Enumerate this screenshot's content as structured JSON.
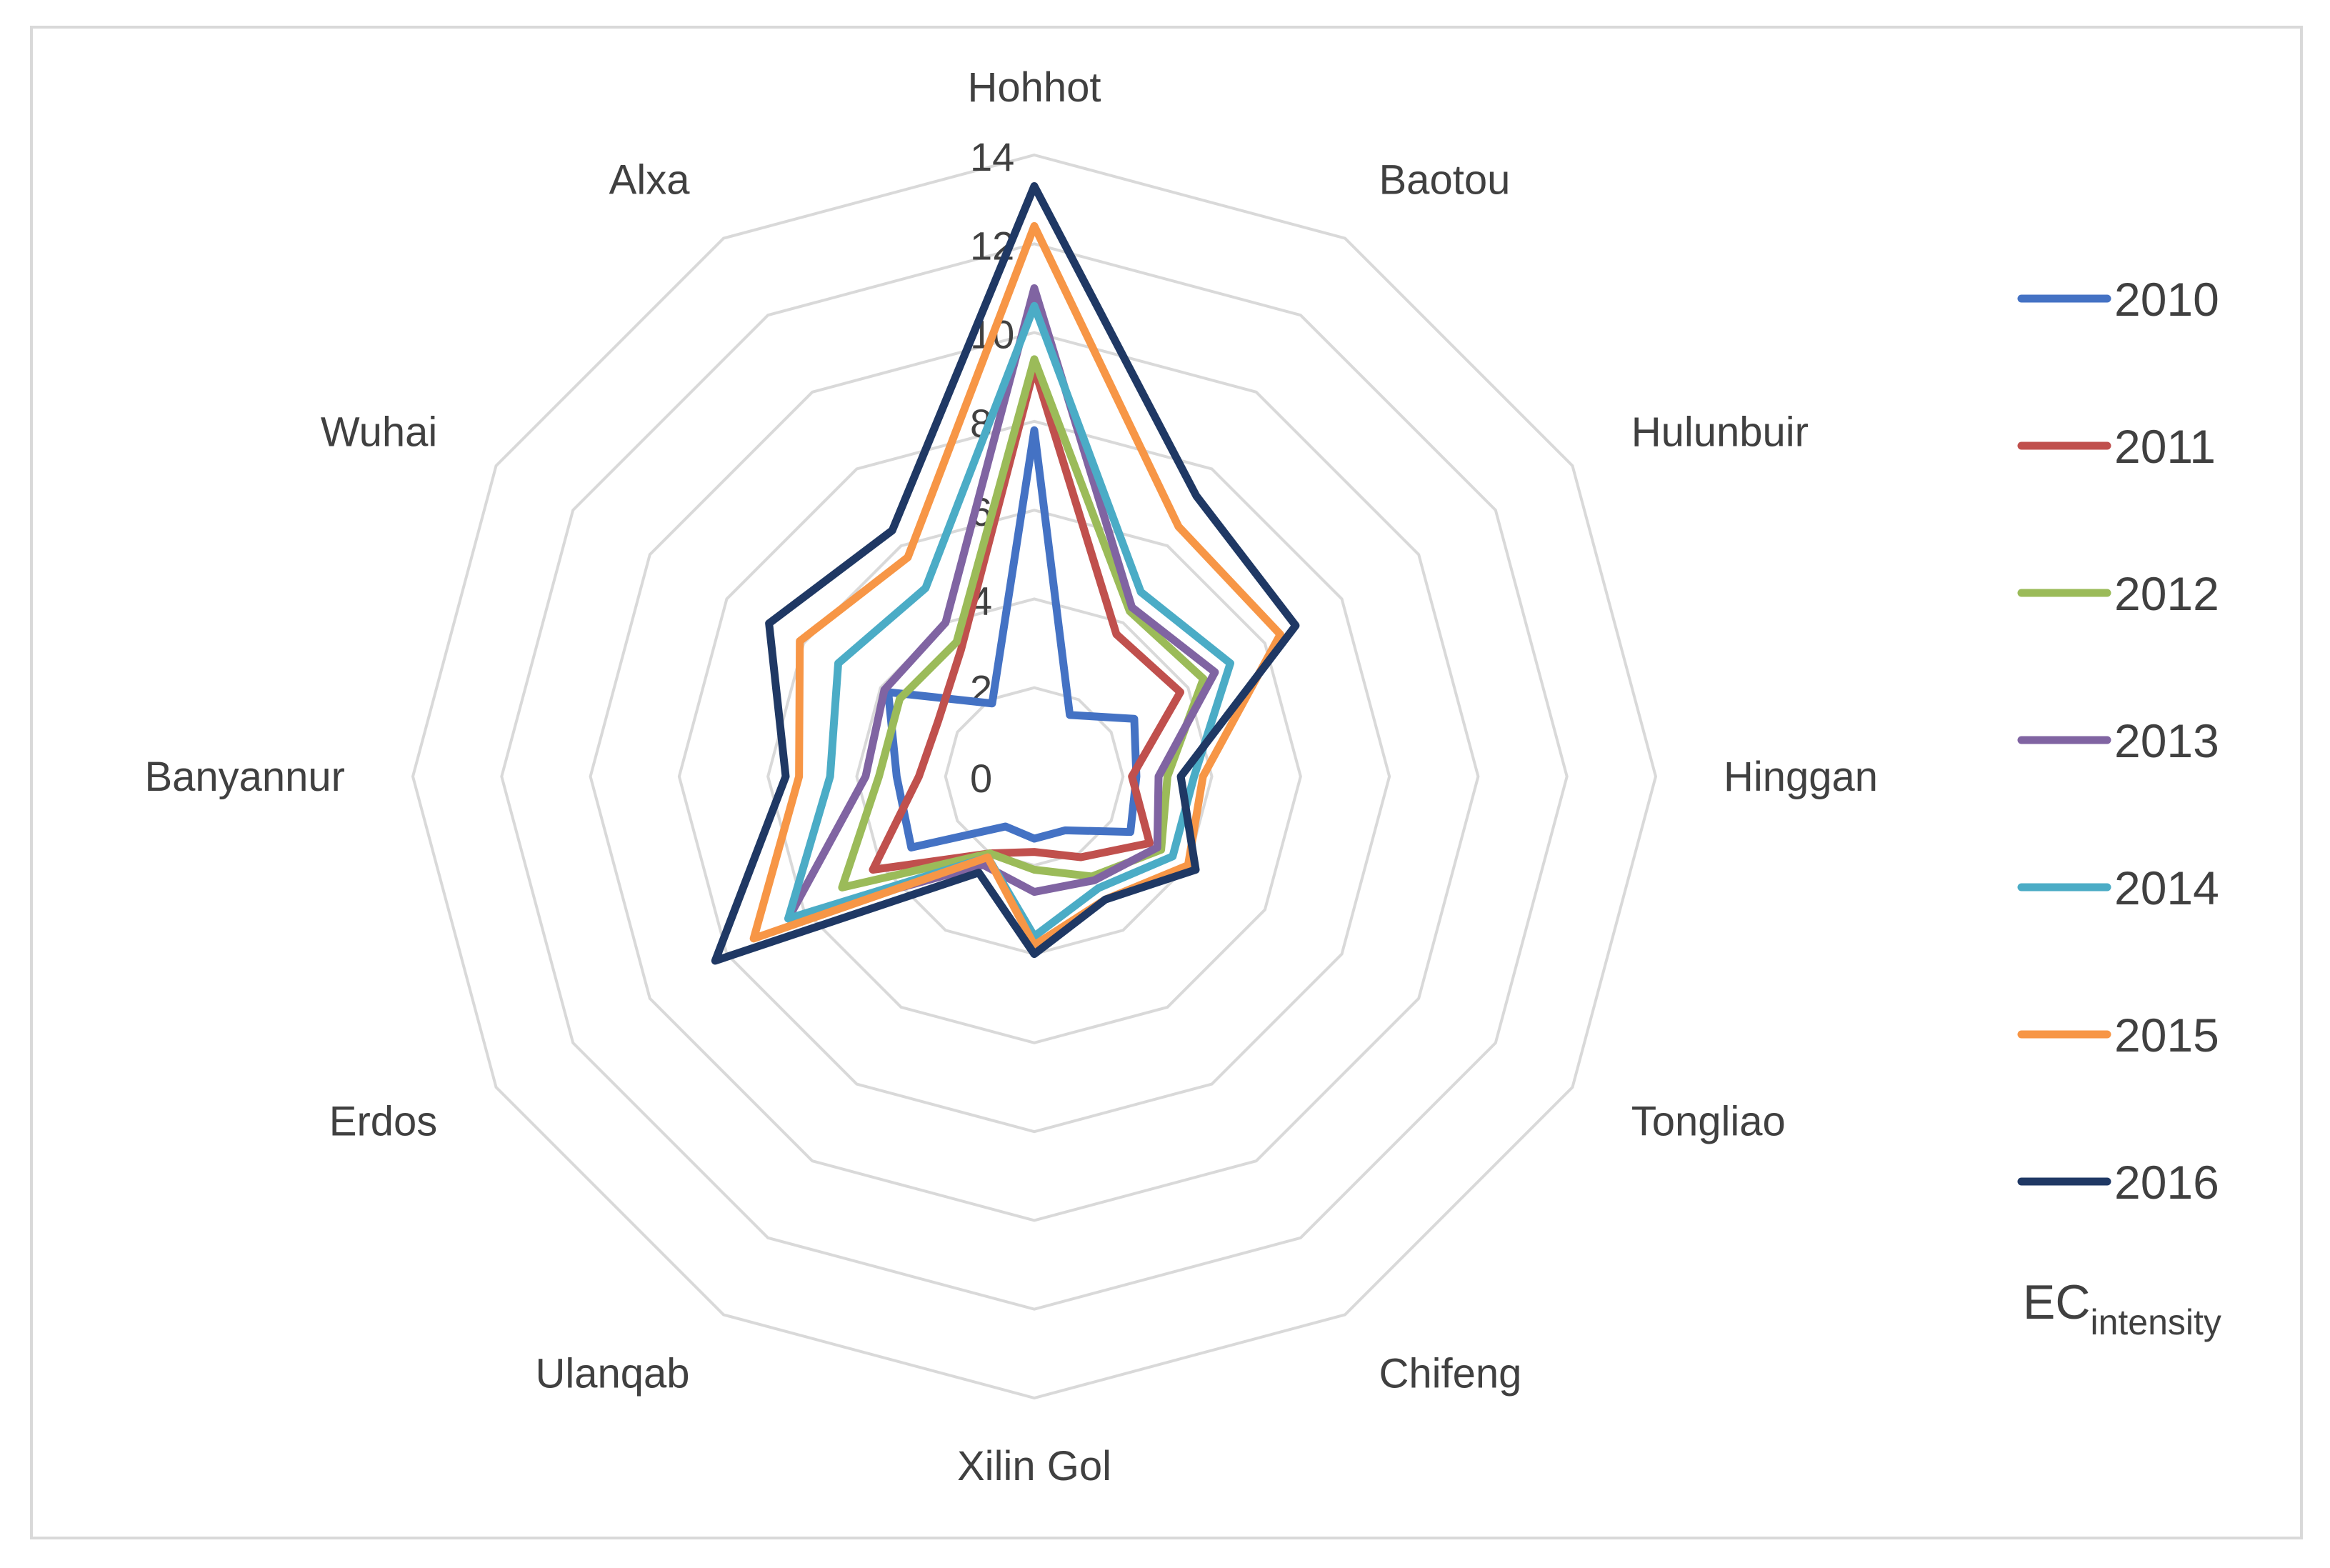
{
  "chart_data": {
    "type": "radar",
    "categories": [
      "Hohhot",
      "Baotou",
      "Hulunbuir",
      "Hinggan",
      "Tongliao",
      "Chifeng",
      "Xilin Gol",
      "Ulanqab",
      "Erdos",
      "Banyannur",
      "Wuhai",
      "Alxa"
    ],
    "ticks": [
      "0",
      "2",
      "4",
      "6",
      "8",
      "10",
      "12",
      "14"
    ],
    "rlim": [
      0,
      14
    ],
    "grid": true,
    "legend_position": "right",
    "legend_note_main": "EC",
    "legend_note_sub": "intensity",
    "series": [
      {
        "name": "2010",
        "color": "#4472C4",
        "values": [
          7.8,
          1.6,
          2.6,
          2.3,
          2.5,
          1.4,
          1.4,
          1.3,
          3.2,
          3.1,
          3.8,
          1.9
        ]
      },
      {
        "name": "2011",
        "color": "#C0504D",
        "values": [
          9.2,
          3.7,
          3.8,
          2.2,
          3.0,
          2.1,
          1.7,
          2.0,
          4.2,
          2.6,
          2.5,
          3.3
        ]
      },
      {
        "name": "2012",
        "color": "#9BBB59",
        "values": [
          9.4,
          4.3,
          4.4,
          3.0,
          3.3,
          2.6,
          2.1,
          2.0,
          5.0,
          3.5,
          3.5,
          3.5
        ]
      },
      {
        "name": "2013",
        "color": "#8064A2",
        "values": [
          11.0,
          4.4,
          4.7,
          2.8,
          3.2,
          2.7,
          2.6,
          2.3,
          6.4,
          3.8,
          3.9,
          4.0
        ]
      },
      {
        "name": "2014",
        "color": "#4BACC6",
        "values": [
          10.6,
          4.8,
          5.1,
          3.6,
          3.6,
          2.9,
          3.6,
          2.1,
          6.4,
          4.6,
          5.1,
          4.9
        ]
      },
      {
        "name": "2015",
        "color": "#F79646",
        "values": [
          12.4,
          6.5,
          6.4,
          3.8,
          4.0,
          3.2,
          3.8,
          2.1,
          7.3,
          5.3,
          6.1,
          5.7
        ]
      },
      {
        "name": "2016",
        "color": "#1F3864",
        "values": [
          13.3,
          7.3,
          6.8,
          3.3,
          4.2,
          3.2,
          4.0,
          2.5,
          8.3,
          5.6,
          6.9,
          6.4
        ]
      }
    ]
  }
}
